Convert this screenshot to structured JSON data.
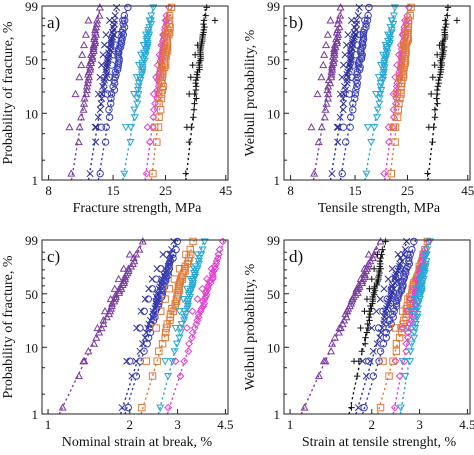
{
  "chart_data": [
    {
      "type": "scatter",
      "panel_label": "a)",
      "xlabel": "Fracture strength, MPa",
      "ylabel": "Probability of fracture, %",
      "xscale": "log",
      "yscale": "weibull",
      "xlim": [
        7.5,
        46
      ],
      "ylim": [
        1,
        99
      ],
      "xticks": [
        "8",
        "15",
        "25",
        "45"
      ],
      "xtick_values": [
        8,
        15,
        25,
        45
      ],
      "yticks": [
        "1",
        "10",
        "50",
        "99"
      ],
      "ytick_values": [
        1,
        10,
        50,
        99
      ],
      "series": [
        {
          "marker": "triangle",
          "color": "#7a3d9e",
          "x": [
            9.8,
            10.4,
            10.8,
            11.0,
            11.1,
            11.3,
            11.5,
            11.8
          ],
          "fit_x": [
            10.0,
            13.2
          ]
        },
        {
          "marker": "x",
          "color": "#2d2f9e",
          "x": [
            12.6,
            13.0,
            13.2,
            13.4,
            13.6,
            13.8,
            14.0,
            14.5
          ],
          "fit_x": [
            11.8,
            15.6
          ]
        },
        {
          "marker": "circle",
          "color": "#3a3fb5",
          "x": [
            13.4,
            14.2,
            14.5,
            14.8,
            15.1,
            15.4,
            15.8,
            16.5
          ],
          "fit_x": [
            13.0,
            17.2
          ]
        },
        {
          "marker": "triangle-down",
          "color": "#27a9d6",
          "x": [
            17.0,
            18.4,
            18.9,
            19.3,
            19.7,
            20.2,
            20.7,
            21.4
          ],
          "fit_x": [
            16.5,
            22.2
          ]
        },
        {
          "marker": "diamond",
          "color": "#e040d0",
          "x": [
            21.0,
            22.3,
            22.8,
            23.2,
            23.6,
            24.0,
            24.4,
            25.0
          ],
          "fit_x": [
            20.5,
            25.8
          ]
        },
        {
          "marker": "square",
          "color": "#e07a3a",
          "x": [
            22.5,
            23.4,
            23.8,
            24.1,
            24.4,
            24.7,
            25.1,
            25.8
          ],
          "fit_x": [
            21.8,
            26.5
          ]
        },
        {
          "marker": "plus",
          "color": "#111111",
          "x": [
            30.8,
            31.5,
            32.0,
            32.6,
            33.4,
            34.2,
            36.0,
            40.5
          ],
          "fit_x": [
            30.5,
            37.0
          ]
        }
      ]
    },
    {
      "type": "scatter",
      "panel_label": "b)",
      "xlabel": "Tensile strength, MPa",
      "ylabel": "Weibull probability, %",
      "xscale": "log",
      "yscale": "weibull",
      "xlim": [
        7.5,
        46
      ],
      "ylim": [
        1,
        99
      ],
      "xticks": [
        "8",
        "15",
        "25",
        "45"
      ],
      "xtick_values": [
        8,
        15,
        25,
        45
      ],
      "yticks": [
        "1",
        "10",
        "50",
        "99"
      ],
      "ytick_values": [
        1,
        10,
        50,
        99
      ],
      "series": [
        {
          "marker": "triangle",
          "color": "#7a3d9e",
          "x": [
            9.8,
            10.4,
            10.8,
            11.0,
            11.1,
            11.3,
            11.5,
            11.8
          ],
          "fit_x": [
            10.0,
            13.2
          ]
        },
        {
          "marker": "x",
          "color": "#2d2f9e",
          "x": [
            12.6,
            13.0,
            13.2,
            13.4,
            13.6,
            13.8,
            14.0,
            14.5
          ],
          "fit_x": [
            11.8,
            15.6
          ]
        },
        {
          "marker": "circle",
          "color": "#3a3fb5",
          "x": [
            13.4,
            14.2,
            14.5,
            14.8,
            15.1,
            15.4,
            15.8,
            16.5
          ],
          "fit_x": [
            13.0,
            17.2
          ]
        },
        {
          "marker": "triangle-down",
          "color": "#27a9d6",
          "x": [
            17.0,
            18.4,
            18.9,
            19.3,
            19.7,
            20.2,
            20.7,
            21.4
          ],
          "fit_x": [
            16.5,
            22.2
          ]
        },
        {
          "marker": "diamond",
          "color": "#e040d0",
          "x": [
            20.8,
            21.8,
            22.2,
            22.6,
            23.0,
            23.4,
            23.8,
            24.4
          ],
          "fit_x": [
            20.0,
            25.2
          ]
        },
        {
          "marker": "square",
          "color": "#e07a3a",
          "x": [
            21.8,
            22.7,
            23.1,
            23.5,
            23.8,
            24.1,
            24.5,
            25.2
          ],
          "fit_x": [
            21.0,
            26.0
          ]
        },
        {
          "marker": "plus",
          "color": "#111111",
          "x": [
            30.8,
            31.5,
            32.0,
            32.6,
            33.4,
            34.2,
            36.0,
            40.5
          ],
          "fit_x": [
            30.5,
            37.0
          ]
        }
      ]
    },
    {
      "type": "scatter",
      "panel_label": "c)",
      "xlabel": "Nominal strain at break, %",
      "ylabel": "Probability of fracture, %",
      "xscale": "log",
      "yscale": "weibull",
      "xlim": [
        0.95,
        4.6
      ],
      "ylim": [
        1,
        99
      ],
      "xticks": [
        "1",
        "2",
        "3",
        "4.5"
      ],
      "xtick_values": [
        1,
        2,
        3,
        4.5
      ],
      "yticks": [
        "1",
        "10",
        "50",
        "99"
      ],
      "ytick_values": [
        1,
        10,
        50,
        99
      ],
      "series": [
        {
          "marker": "triangle",
          "color": "#7a3d9e",
          "x": [
            1.35,
            1.52,
            1.62,
            1.7,
            1.76,
            1.82,
            1.9,
            2.0
          ],
          "fit_x": [
            1.1,
            2.25
          ]
        },
        {
          "marker": "x",
          "color": "#2d2f9e",
          "x": [
            1.95,
            2.12,
            2.2,
            2.28,
            2.35,
            2.42,
            2.52,
            2.65
          ],
          "fit_x": [
            1.85,
            2.95
          ]
        },
        {
          "marker": "circle",
          "color": "#3a3fb5",
          "x": [
            2.0,
            2.18,
            2.26,
            2.34,
            2.42,
            2.5,
            2.6,
            2.75
          ],
          "fit_x": [
            1.92,
            3.0
          ]
        },
        {
          "marker": "square",
          "color": "#e07a3a",
          "x": [
            2.3,
            2.5,
            2.6,
            2.7,
            2.8,
            2.92,
            3.05,
            3.22
          ],
          "fit_x": [
            2.2,
            3.45
          ]
        },
        {
          "marker": "triangle-down",
          "color": "#27a9d6",
          "x": [
            2.7,
            2.95,
            3.05,
            3.15,
            3.25,
            3.35,
            3.45,
            3.55
          ],
          "fit_x": [
            2.55,
            3.75
          ]
        },
        {
          "marker": "diamond",
          "color": "#e040d0",
          "x": [
            2.95,
            3.25,
            3.4,
            3.55,
            3.7,
            3.85,
            4.0,
            4.25
          ],
          "fit_x": [
            2.75,
            4.45
          ]
        }
      ]
    },
    {
      "type": "scatter",
      "panel_label": "d)",
      "xlabel": "Strain at tensile strenght, %",
      "ylabel": "Weibull probability, %",
      "xscale": "log",
      "yscale": "weibull",
      "xlim": [
        0.95,
        4.6
      ],
      "ylim": [
        1,
        99
      ],
      "xticks": [
        "1",
        "2",
        "3",
        "4.5"
      ],
      "xtick_values": [
        1,
        2,
        3,
        4.5
      ],
      "yticks": [
        "1",
        "10",
        "50",
        "99"
      ],
      "ytick_values": [
        1,
        10,
        50,
        99
      ],
      "series": [
        {
          "marker": "triangle",
          "color": "#7a3d9e",
          "x": [
            1.35,
            1.52,
            1.62,
            1.7,
            1.76,
            1.82,
            1.88,
            1.95
          ],
          "fit_x": [
            1.1,
            2.15
          ]
        },
        {
          "marker": "plus",
          "color": "#111111",
          "x": [
            1.72,
            1.82,
            1.88,
            1.92,
            1.96,
            2.0,
            2.04,
            2.1
          ],
          "fit_x": [
            1.65,
            2.25
          ]
        },
        {
          "marker": "x",
          "color": "#2d2f9e",
          "x": [
            1.85,
            2.0,
            2.08,
            2.15,
            2.22,
            2.3,
            2.38,
            2.5
          ],
          "fit_x": [
            1.75,
            2.7
          ]
        },
        {
          "marker": "circle",
          "color": "#3a3fb5",
          "x": [
            1.95,
            2.12,
            2.2,
            2.28,
            2.36,
            2.45,
            2.55,
            2.7
          ],
          "fit_x": [
            1.85,
            2.9
          ]
        },
        {
          "marker": "square",
          "color": "#e07a3a",
          "x": [
            2.2,
            2.45,
            2.6,
            2.72,
            2.82,
            2.92,
            3.0,
            3.1
          ],
          "fit_x": [
            2.1,
            3.2
          ]
        },
        {
          "marker": "diamond",
          "color": "#e040d0",
          "x": [
            2.45,
            2.6,
            2.7,
            2.78,
            2.86,
            2.94,
            3.02,
            3.1
          ],
          "fit_x": [
            2.4,
            3.2
          ]
        },
        {
          "marker": "triangle-down",
          "color": "#27a9d6",
          "x": [
            2.6,
            2.72,
            2.8,
            2.88,
            2.95,
            3.02,
            3.08,
            3.15
          ],
          "fit_x": [
            2.55,
            3.25
          ]
        }
      ]
    }
  ]
}
